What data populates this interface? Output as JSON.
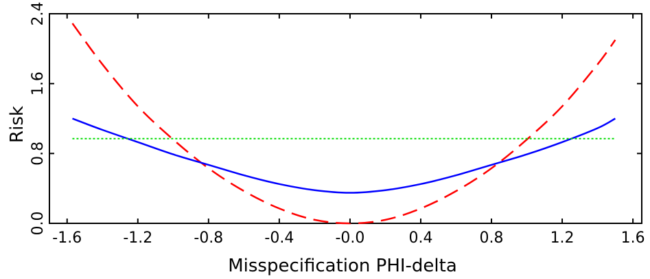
{
  "chart_data": {
    "type": "line",
    "title": "",
    "xlabel": "Misspecification PHI-delta",
    "ylabel": "Risk",
    "xlim": [
      -1.7,
      1.65
    ],
    "ylim": [
      0.0,
      2.4
    ],
    "xticks": [
      -1.6,
      -1.2,
      -0.8,
      -0.4,
      0.0,
      0.4,
      0.8,
      1.2,
      1.6
    ],
    "xtick_labels": [
      "-1.6",
      "-1.2",
      "-0.8",
      "-0.4",
      "-0.0",
      "0.4",
      "0.8",
      "1.2",
      "1.6"
    ],
    "yticks": [
      0.0,
      0.8,
      1.6,
      2.4
    ],
    "ytick_labels": [
      "0.0",
      "0.8",
      "1.6",
      "2.4"
    ],
    "grid": false,
    "legend": "none",
    "series": [
      {
        "style": "dashed",
        "color": "#ff0000",
        "x": [
          -1.57,
          -1.4,
          -1.2,
          -1.0,
          -0.8,
          -0.6,
          -0.4,
          -0.2,
          0.0,
          0.2,
          0.4,
          0.6,
          0.8,
          1.0,
          1.2,
          1.4,
          1.5
        ],
        "y": [
          2.29,
          1.82,
          1.34,
          0.96,
          0.63,
          0.37,
          0.17,
          0.04,
          0.0,
          0.04,
          0.17,
          0.37,
          0.63,
          0.96,
          1.34,
          1.82,
          2.1
        ]
      },
      {
        "style": "solid",
        "color": "#0000ff",
        "x": [
          -1.57,
          -1.4,
          -1.2,
          -1.0,
          -0.8,
          -0.6,
          -0.4,
          -0.2,
          0.0,
          0.2,
          0.4,
          0.6,
          0.8,
          1.0,
          1.2,
          1.4,
          1.5
        ],
        "y": [
          1.2,
          1.07,
          0.93,
          0.79,
          0.67,
          0.55,
          0.45,
          0.38,
          0.35,
          0.38,
          0.45,
          0.55,
          0.67,
          0.79,
          0.93,
          1.09,
          1.2
        ]
      },
      {
        "style": "dotted",
        "color": "#00dd00",
        "x": [
          -1.57,
          1.5
        ],
        "y": [
          0.97,
          0.97
        ]
      }
    ]
  }
}
